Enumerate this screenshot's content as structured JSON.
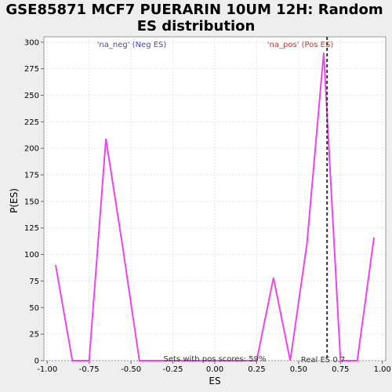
{
  "chart_data": {
    "type": "line",
    "title_lines": [
      "GSE85871 MCF7 PUERARIN 10UM 12H: Random",
      "ES distribution"
    ],
    "xlabel": "ES",
    "ylabel": "P(ES)",
    "xlim": [
      -1.02,
      1.02
    ],
    "ylim": [
      0,
      305
    ],
    "x_ticks": [
      -1.0,
      -0.75,
      -0.5,
      -0.25,
      0.0,
      0.25,
      0.5,
      0.75,
      1.0
    ],
    "x_tick_labels": [
      "-1.00",
      "-0.75",
      "-0.50",
      "-0.25",
      "0.00",
      "0.25",
      "0.50",
      "0.75",
      "1.00"
    ],
    "y_ticks": [
      0,
      25,
      50,
      75,
      100,
      125,
      150,
      175,
      200,
      225,
      250,
      275,
      300
    ],
    "y_tick_labels": [
      "0",
      "25",
      "50",
      "75",
      "100",
      "125",
      "150",
      "175",
      "200",
      "225",
      "250",
      "275",
      "300"
    ],
    "grid": true,
    "line_color": "#ee44ee",
    "series": [
      {
        "x": [
          -0.95,
          -0.85,
          -0.75,
          -0.65,
          -0.55,
          -0.45,
          -0.35,
          -0.25,
          -0.15,
          -0.05,
          0.05,
          0.15,
          0.25,
          0.35,
          0.45,
          0.55,
          0.65,
          0.75,
          0.85,
          0.95
        ],
        "y": [
          90,
          0,
          0,
          209,
          107,
          0,
          0,
          0,
          0,
          0,
          0,
          0,
          0,
          78,
          0,
          110,
          290,
          0,
          0,
          116
        ]
      }
    ],
    "real_es": 0.67,
    "legend": {
      "neg_label": "'na_neg' (Neg ES)",
      "neg_color": "#4444cc",
      "pos_label": "'na_pos' (Pos ES)",
      "pos_color": "#cc3333"
    },
    "annotations": {
      "pos_scores": "Sets with pos scores: 59%",
      "real_es_label": "Real ES 0.7"
    }
  }
}
